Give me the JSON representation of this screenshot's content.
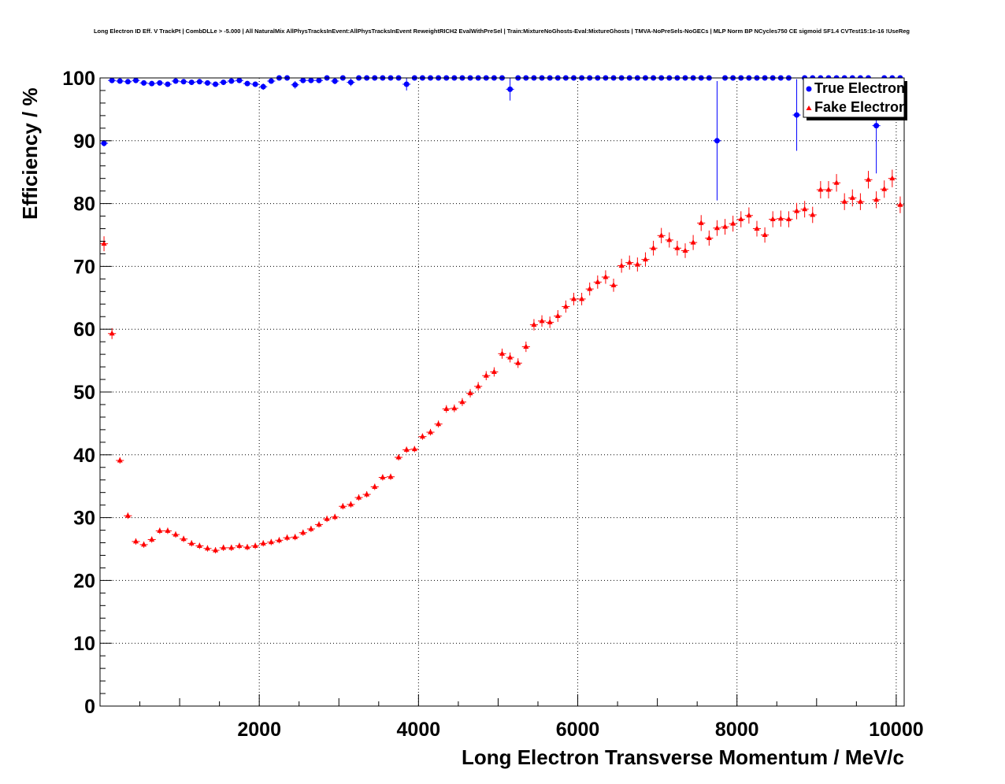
{
  "chart_data": {
    "type": "scatter",
    "title": "Long Electron ID Eff. V TrackPt | CombDLLe > -5.000 | All NaturalMix AllPhysTracksInEvent:AllPhysTracksInEvent ReweightRICH2 EvalWithPreSel | Train:MixtureNoGhosts-Eval:MixtureGhosts | TMVA-NoPreSels-NoGECs | MLP Norm BP NCycles750 CE sigmoid SF1.4 CVTest15:1e-16 !UseReg",
    "xlabel": "Long Electron Transverse Momentum / MeV/c",
    "ylabel": "Efficiency / %",
    "xlim": [
      0,
      10100
    ],
    "ylim": [
      0,
      100
    ],
    "x_ticks": [
      2000,
      4000,
      6000,
      8000,
      10000
    ],
    "y_ticks": [
      0,
      10,
      20,
      30,
      40,
      50,
      60,
      70,
      80,
      90,
      100
    ],
    "grid": true,
    "legend_position": "top-right",
    "series": [
      {
        "name": "True Electron",
        "color": "#0000ff",
        "marker": "circle",
        "x": [
          50,
          150,
          250,
          350,
          450,
          550,
          650,
          750,
          850,
          950,
          1050,
          1150,
          1250,
          1350,
          1450,
          1550,
          1650,
          1750,
          1850,
          1950,
          2050,
          2150,
          2250,
          2350,
          2450,
          2550,
          2650,
          2750,
          2850,
          2950,
          3050,
          3150,
          3250,
          3350,
          3450,
          3550,
          3650,
          3750,
          3850,
          3950,
          4050,
          4150,
          4250,
          4350,
          4450,
          4550,
          4650,
          4750,
          4850,
          4950,
          5050,
          5150,
          5250,
          5350,
          5450,
          5550,
          5650,
          5750,
          5850,
          5950,
          6050,
          6150,
          6250,
          6350,
          6450,
          6550,
          6650,
          6750,
          6850,
          6950,
          7050,
          7150,
          7250,
          7350,
          7450,
          7550,
          7650,
          7750,
          7850,
          7950,
          8050,
          8150,
          8250,
          8350,
          8450,
          8550,
          8650,
          8750,
          8850,
          8950,
          9050,
          9150,
          9250,
          9350,
          9450,
          9550,
          9650,
          9750,
          9850,
          9950,
          10050
        ],
        "y": [
          89.6,
          99.6,
          99.5,
          99.4,
          99.6,
          99.2,
          99.1,
          99.2,
          99.0,
          99.5,
          99.4,
          99.3,
          99.4,
          99.2,
          99.0,
          99.3,
          99.5,
          99.6,
          99.1,
          99.0,
          98.6,
          99.5,
          100,
          100,
          98.9,
          99.6,
          99.6,
          99.6,
          100,
          99.5,
          100,
          99.3,
          100,
          100,
          100,
          100,
          100,
          100,
          99.0,
          100,
          100,
          100,
          100,
          100,
          100,
          100,
          100,
          100,
          100,
          100,
          100,
          98.2,
          100,
          100,
          100,
          100,
          100,
          100,
          100,
          100,
          100,
          100,
          100,
          100,
          100,
          100,
          100,
          100,
          100,
          100,
          100,
          100,
          100,
          100,
          100,
          100,
          100,
          90.0,
          100,
          100,
          100,
          100,
          100,
          100,
          100,
          100,
          100,
          94.1,
          100,
          100,
          100,
          100,
          100,
          100,
          100,
          100,
          100,
          92.4,
          100,
          100,
          100
        ],
        "yerr": [
          0.5,
          0.2,
          0.2,
          0.2,
          0.2,
          0.2,
          0.2,
          0.2,
          0.2,
          0.2,
          0.2,
          0.2,
          0.2,
          0.2,
          0.3,
          0.3,
          0.3,
          0.3,
          0.3,
          0.4,
          0.5,
          0.4,
          0,
          0,
          0.6,
          0.4,
          0.4,
          0.4,
          0,
          0.5,
          0,
          0.6,
          0,
          0,
          0,
          0,
          0,
          0,
          1.0,
          0,
          0,
          0,
          0,
          0,
          0,
          0,
          0,
          0,
          0,
          0,
          0,
          1.8,
          0,
          0,
          0,
          0,
          0,
          0,
          0,
          0,
          0,
          0,
          0,
          0,
          0,
          0,
          0,
          0,
          0,
          0,
          0,
          0,
          0,
          0,
          0,
          0,
          0,
          9.5,
          0,
          0,
          0,
          0,
          0,
          0,
          0,
          0,
          0,
          5.7,
          0,
          0,
          0,
          0,
          0,
          0,
          0,
          0,
          0,
          7.6,
          0,
          0,
          0
        ]
      },
      {
        "name": "Fake Electron",
        "color": "#ff0000",
        "marker": "triangle",
        "x": [
          50,
          150,
          250,
          350,
          450,
          550,
          650,
          750,
          850,
          950,
          1050,
          1150,
          1250,
          1350,
          1450,
          1550,
          1650,
          1750,
          1850,
          1950,
          2050,
          2150,
          2250,
          2350,
          2450,
          2550,
          2650,
          2750,
          2850,
          2950,
          3050,
          3150,
          3250,
          3350,
          3450,
          3550,
          3650,
          3750,
          3850,
          3950,
          4050,
          4150,
          4250,
          4350,
          4450,
          4550,
          4650,
          4750,
          4850,
          4950,
          5050,
          5150,
          5250,
          5350,
          5450,
          5550,
          5650,
          5750,
          5850,
          5950,
          6050,
          6150,
          6250,
          6350,
          6450,
          6550,
          6650,
          6750,
          6850,
          6950,
          7050,
          7150,
          7250,
          7350,
          7450,
          7550,
          7650,
          7750,
          7850,
          7950,
          8050,
          8150,
          8250,
          8350,
          8450,
          8550,
          8650,
          8750,
          8850,
          8950,
          9050,
          9150,
          9250,
          9350,
          9450,
          9550,
          9650,
          9750,
          9850,
          9950,
          10050
        ],
        "y": [
          73.6,
          59.3,
          39.1,
          30.3,
          26.2,
          25.7,
          26.5,
          27.9,
          27.9,
          27.3,
          26.6,
          25.9,
          25.5,
          25.1,
          24.8,
          25.2,
          25.2,
          25.5,
          25.3,
          25.5,
          25.9,
          26.1,
          26.4,
          26.8,
          26.9,
          27.6,
          28.2,
          28.9,
          29.8,
          30.1,
          31.8,
          32.1,
          33.2,
          33.7,
          34.9,
          36.4,
          36.5,
          39.6,
          40.8,
          40.9,
          42.9,
          43.6,
          44.9,
          47.3,
          47.4,
          48.4,
          49.8,
          50.9,
          52.6,
          53.2,
          56.1,
          55.5,
          54.6,
          57.2,
          60.7,
          61.3,
          61.1,
          62.1,
          63.6,
          64.8,
          64.8,
          66.4,
          67.5,
          68.3,
          67.0,
          70.1,
          70.6,
          70.3,
          71.1,
          72.9,
          74.9,
          74.2,
          72.9,
          72.5,
          73.8,
          76.9,
          74.5,
          76.1,
          76.3,
          76.8,
          77.5,
          78.1,
          76.0,
          75.0,
          77.5,
          77.6,
          77.5,
          78.8,
          79.1,
          78.2,
          82.2,
          82.2,
          83.3,
          80.3,
          80.9,
          80.3,
          83.8,
          80.6,
          82.3,
          84.0,
          79.8
        ]
      }
    ]
  }
}
